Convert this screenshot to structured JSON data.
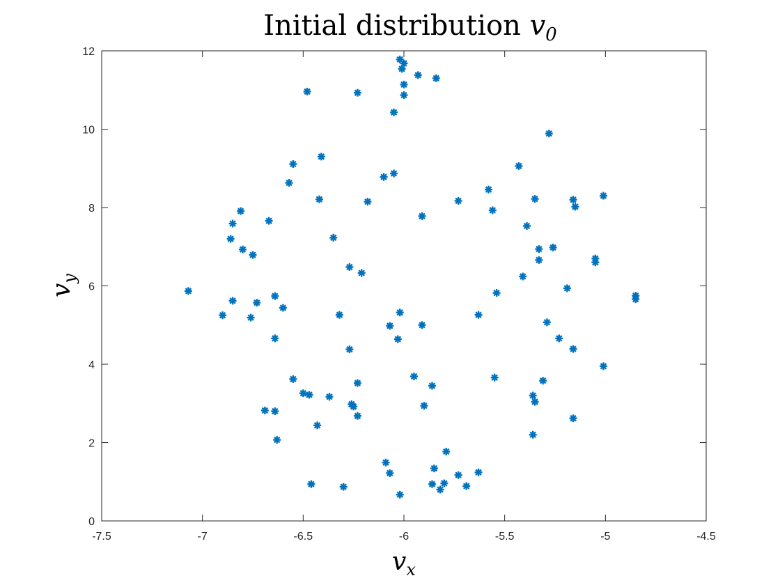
{
  "chart_data": {
    "type": "scatter",
    "title": "Initial distribution ",
    "title_var": "v",
    "title_sub": "0",
    "xlabel_var": "v",
    "xlabel_sub": "x",
    "ylabel_var": "v",
    "ylabel_sub": "y",
    "xlim": [
      -7.5,
      -4.5
    ],
    "ylim": [
      0,
      12
    ],
    "xticks": [
      -7.5,
      -7,
      -6.5,
      -6,
      -5.5,
      -5,
      -4.5
    ],
    "yticks": [
      0,
      2,
      4,
      6,
      8,
      10,
      12
    ],
    "xtick_labels": [
      "-7.5",
      "-7",
      "-6.5",
      "-6",
      "-5.5",
      "-5",
      "-4.5"
    ],
    "ytick_labels": [
      "0",
      "2",
      "4",
      "6",
      "8",
      "10",
      "12"
    ],
    "grid": false,
    "marker": "asterisk",
    "color": "#0072BD",
    "points": [
      [
        -6.02,
        11.78
      ],
      [
        -6.0,
        11.68
      ],
      [
        -6.01,
        11.54
      ],
      [
        -5.93,
        11.38
      ],
      [
        -5.84,
        11.3
      ],
      [
        -6.0,
        11.14
      ],
      [
        -6.48,
        10.96
      ],
      [
        -6.23,
        10.93
      ],
      [
        -6.0,
        10.87
      ],
      [
        -6.05,
        10.43
      ],
      [
        -5.28,
        9.89
      ],
      [
        -6.41,
        9.3
      ],
      [
        -6.55,
        9.11
      ],
      [
        -5.43,
        9.06
      ],
      [
        -6.05,
        8.87
      ],
      [
        -6.1,
        8.78
      ],
      [
        -6.57,
        8.63
      ],
      [
        -5.58,
        8.46
      ],
      [
        -5.01,
        8.3
      ],
      [
        -6.42,
        8.21
      ],
      [
        -5.35,
        8.22
      ],
      [
        -5.16,
        8.2
      ],
      [
        -5.73,
        8.17
      ],
      [
        -6.18,
        8.15
      ],
      [
        -5.15,
        8.02
      ],
      [
        -5.56,
        7.93
      ],
      [
        -6.81,
        7.91
      ],
      [
        -5.91,
        7.78
      ],
      [
        -6.67,
        7.66
      ],
      [
        -6.85,
        7.59
      ],
      [
        -5.39,
        7.53
      ],
      [
        -6.35,
        7.23
      ],
      [
        -6.86,
        7.2
      ],
      [
        -5.26,
        6.98
      ],
      [
        -5.33,
        6.94
      ],
      [
        -6.8,
        6.93
      ],
      [
        -6.75,
        6.79
      ],
      [
        -5.05,
        6.7
      ],
      [
        -5.33,
        6.66
      ],
      [
        -5.05,
        6.6
      ],
      [
        -6.27,
        6.48
      ],
      [
        -6.21,
        6.33
      ],
      [
        -5.41,
        6.24
      ],
      [
        -5.19,
        5.94
      ],
      [
        -7.07,
        5.87
      ],
      [
        -5.54,
        5.82
      ],
      [
        -4.85,
        5.75
      ],
      [
        -6.64,
        5.74
      ],
      [
        -4.85,
        5.66
      ],
      [
        -6.85,
        5.62
      ],
      [
        -6.73,
        5.57
      ],
      [
        -6.6,
        5.44
      ],
      [
        -6.02,
        5.32
      ],
      [
        -6.32,
        5.26
      ],
      [
        -5.63,
        5.26
      ],
      [
        -6.9,
        5.25
      ],
      [
        -6.76,
        5.19
      ],
      [
        -5.29,
        5.07
      ],
      [
        -5.91,
        5.0
      ],
      [
        -6.07,
        4.98
      ],
      [
        -6.64,
        4.66
      ],
      [
        -5.23,
        4.66
      ],
      [
        -6.03,
        4.64
      ],
      [
        -5.16,
        4.39
      ],
      [
        -6.27,
        4.38
      ],
      [
        -5.01,
        3.95
      ],
      [
        -5.95,
        3.69
      ],
      [
        -5.55,
        3.66
      ],
      [
        -6.55,
        3.62
      ],
      [
        -5.31,
        3.58
      ],
      [
        -6.23,
        3.52
      ],
      [
        -5.86,
        3.45
      ],
      [
        -6.5,
        3.26
      ],
      [
        -6.47,
        3.22
      ],
      [
        -5.36,
        3.2
      ],
      [
        -6.37,
        3.17
      ],
      [
        -5.35,
        3.04
      ],
      [
        -6.26,
        2.98
      ],
      [
        -6.25,
        2.92
      ],
      [
        -5.9,
        2.94
      ],
      [
        -6.69,
        2.82
      ],
      [
        -6.64,
        2.8
      ],
      [
        -6.23,
        2.68
      ],
      [
        -5.16,
        2.62
      ],
      [
        -6.43,
        2.44
      ],
      [
        -5.36,
        2.2
      ],
      [
        -6.63,
        2.07
      ],
      [
        -5.79,
        1.77
      ],
      [
        -6.09,
        1.49
      ],
      [
        -5.85,
        1.34
      ],
      [
        -5.63,
        1.24
      ],
      [
        -6.07,
        1.22
      ],
      [
        -5.73,
        1.17
      ],
      [
        -5.8,
        0.96
      ],
      [
        -5.86,
        0.94
      ],
      [
        -6.46,
        0.94
      ],
      [
        -5.69,
        0.89
      ],
      [
        -6.3,
        0.87
      ],
      [
        -5.82,
        0.8
      ],
      [
        -6.02,
        0.67
      ]
    ]
  }
}
